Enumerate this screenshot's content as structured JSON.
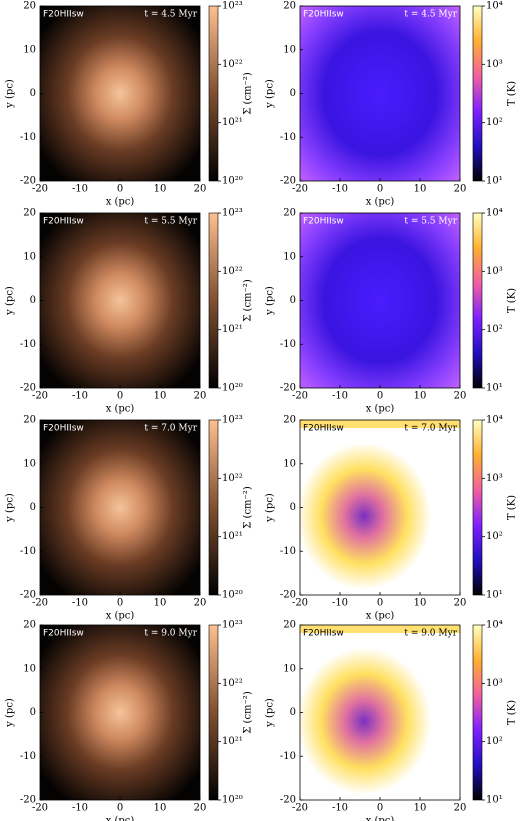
{
  "figure": {
    "xlabel": "x (pc)",
    "ylabel": "y (pc)",
    "xlim": [
      -20,
      20
    ],
    "ylim": [
      -20,
      20
    ],
    "xticks": [
      -20,
      -10,
      0,
      10,
      20
    ],
    "yticks": [
      -20,
      -10,
      0,
      10,
      20
    ],
    "colorbars": [
      {
        "label": "Σ (cm⁻²)",
        "clim": [
          1e+20,
          1e+23
        ],
        "log": true,
        "ticks": [
          {
            "value": 1e+20,
            "label": "10²⁰"
          },
          {
            "value": 1e+21,
            "label": "10²¹"
          },
          {
            "value": 1e+22,
            "label": "10²²"
          },
          {
            "value": 1e+23,
            "label": "10²³"
          }
        ]
      },
      {
        "label": "T (K)",
        "clim": [
          10,
          10000
        ],
        "log": true,
        "ticks": [
          {
            "value": 10,
            "label": "10¹"
          },
          {
            "value": 100,
            "label": "10²"
          },
          {
            "value": 1000,
            "label": "10³"
          },
          {
            "value": 10000,
            "label": "10⁴"
          }
        ]
      }
    ],
    "panels": [
      {
        "label": "F20HIIsw",
        "time": "t = 4.5 Myr",
        "colorbar": 0
      },
      {
        "label": "F20HIIsw",
        "time": "t = 4.5 Myr",
        "colorbar": 1
      },
      {
        "label": "F20HIIsw",
        "time": "t = 5.5 Myr",
        "colorbar": 0
      },
      {
        "label": "F20HIIsw",
        "time": "t = 5.5 Myr",
        "colorbar": 1
      },
      {
        "label": "F20HIIsw",
        "time": "t = 7.0 Myr",
        "colorbar": 0
      },
      {
        "label": "F20HIIsw",
        "time": "t = 7.0 Myr",
        "colorbar": 1
      },
      {
        "label": "F20HIIsw",
        "time": "t = 9.0 Myr",
        "colorbar": 0
      },
      {
        "label": "F20HIIsw",
        "time": "t = 9.0 Myr",
        "colorbar": 1
      }
    ]
  }
}
